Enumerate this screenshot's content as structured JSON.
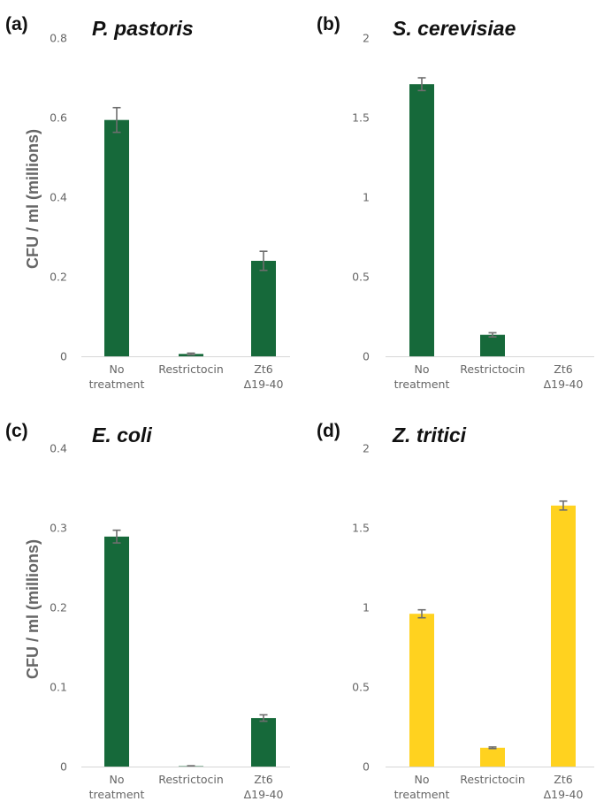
{
  "chart_data": [
    {
      "type": "bar",
      "panel": "(a)",
      "title": "P. pastoris",
      "ylabel": "CFU / ml (millions)",
      "ylim": [
        0,
        0.8
      ],
      "yticks": [
        "0",
        "0.2",
        "0.4",
        "0.6",
        "0.8"
      ],
      "categories": [
        [
          "No",
          "treatment"
        ],
        [
          "Restrictocin"
        ],
        [
          "Zt6",
          "Δ19-40"
        ]
      ],
      "values": [
        0.594,
        0.006,
        0.24
      ],
      "errors": [
        0.031,
        0.002,
        0.024
      ],
      "bar_color": "#16693a",
      "grid": false
    },
    {
      "type": "bar",
      "panel": "(b)",
      "title": "S. cerevisiae",
      "ylabel": "",
      "ylim": [
        0,
        2
      ],
      "yticks": [
        "0",
        "0.5",
        "1",
        "1.5",
        "2"
      ],
      "categories": [
        [
          "No",
          "treatment"
        ],
        [
          "Restrictocin"
        ],
        [
          "Zt6",
          "Δ19-40"
        ]
      ],
      "values": [
        1.71,
        0.135,
        0
      ],
      "errors": [
        0.04,
        0.013,
        0
      ],
      "bar_color": "#16693a",
      "grid": false
    },
    {
      "type": "bar",
      "panel": "(c)",
      "title": "E. coli",
      "ylabel": "CFU / ml (millions)",
      "ylim": [
        0,
        0.4
      ],
      "yticks": [
        "0",
        "0.1",
        "0.2",
        "0.3",
        "0.4"
      ],
      "categories": [
        [
          "No",
          "treatment"
        ],
        [
          "Restrictocin"
        ],
        [
          "Zt6",
          "Δ19-40"
        ]
      ],
      "values": [
        0.289,
        0.0005,
        0.061
      ],
      "errors": [
        0.008,
        0.0005,
        0.004
      ],
      "bar_color": "#16693a",
      "grid": false
    },
    {
      "type": "bar",
      "panel": "(d)",
      "title": "Z. tritici",
      "ylabel": "",
      "ylim": [
        0,
        2
      ],
      "yticks": [
        "0",
        "0.5",
        "1",
        "1.5",
        "2"
      ],
      "categories": [
        [
          "No",
          "treatment"
        ],
        [
          "Restrictocin"
        ],
        [
          "Zt6",
          "Δ19-40"
        ]
      ],
      "values": [
        0.96,
        0.118,
        1.64
      ],
      "errors": [
        0.025,
        0.005,
        0.028
      ],
      "bar_color": "#ffd21f",
      "grid": false
    }
  ]
}
